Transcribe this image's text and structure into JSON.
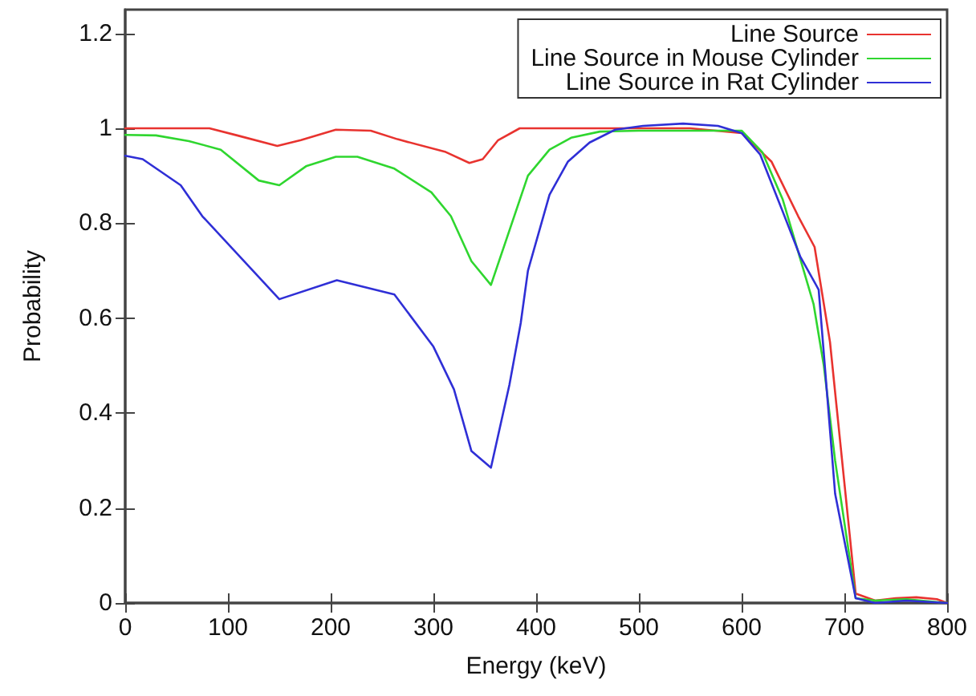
{
  "chart_data": {
    "type": "line",
    "xlabel": "Energy (keV)",
    "ylabel": "Probability",
    "xlim": [
      0,
      800
    ],
    "xticks": [
      0,
      100,
      200,
      300,
      400,
      500,
      600,
      700,
      800
    ],
    "ylim": [
      0,
      1.25
    ],
    "yticks": [
      0,
      0.2,
      0.4,
      0.6,
      0.8,
      1,
      1.2
    ],
    "grid": false,
    "legend": "top right",
    "marker": "none",
    "line_style": "solid",
    "series": [
      {
        "name": "Line Source",
        "color": "#e8332f",
        "x": [
          0,
          50,
          82,
          109,
          148,
          171,
          205,
          239,
          265,
          312,
          335,
          348,
          363,
          384,
          450,
          500,
          550,
          600,
          629,
          655,
          671,
          686,
          711,
          730,
          750,
          770,
          790,
          800
        ],
        "values": [
          1.0,
          1.0,
          1.0,
          0.985,
          0.963,
          0.975,
          0.997,
          0.995,
          0.977,
          0.95,
          0.927,
          0.935,
          0.975,
          1.0,
          1.0,
          1.0,
          1.0,
          0.99,
          0.93,
          0.815,
          0.75,
          0.55,
          0.02,
          0.005,
          0.01,
          0.012,
          0.008,
          0.0
        ]
      },
      {
        "name": "Line Source in Mouse Cylinder",
        "color": "#2fd62f",
        "x": [
          0,
          30,
          62,
          93,
          130,
          150,
          176,
          205,
          226,
          262,
          298,
          317,
          337,
          356,
          392,
          413,
          434,
          462,
          500,
          550,
          600,
          620,
          640,
          655,
          670,
          680,
          691,
          711,
          730,
          760,
          800
        ],
        "values": [
          0.986,
          0.985,
          0.973,
          0.955,
          0.89,
          0.88,
          0.92,
          0.94,
          0.94,
          0.915,
          0.865,
          0.815,
          0.72,
          0.67,
          0.9,
          0.955,
          0.98,
          0.993,
          0.995,
          0.995,
          0.995,
          0.95,
          0.85,
          0.74,
          0.63,
          0.5,
          0.3,
          0.01,
          0.005,
          0.008,
          0.0
        ]
      },
      {
        "name": "Line Source in Rat Cylinder",
        "color": "#2f2fd6",
        "x": [
          0,
          17,
          54,
          75,
          150,
          206,
          262,
          300,
          320,
          337,
          356,
          374,
          385,
          392,
          413,
          431,
          452,
          477,
          504,
          543,
          577,
          600,
          618,
          639,
          657,
          675,
          691,
          711,
          730,
          760,
          800
        ],
        "values": [
          0.942,
          0.935,
          0.88,
          0.815,
          0.64,
          0.68,
          0.65,
          0.54,
          0.45,
          0.32,
          0.285,
          0.46,
          0.59,
          0.7,
          0.86,
          0.93,
          0.97,
          0.997,
          1.005,
          1.01,
          1.005,
          0.99,
          0.945,
          0.83,
          0.73,
          0.66,
          0.23,
          0.01,
          0.0,
          0.005,
          0.0
        ]
      }
    ]
  }
}
